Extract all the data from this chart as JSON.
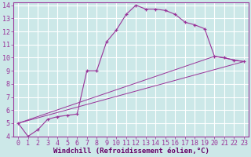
{
  "xlabel": "Windchill (Refroidissement éolien,°C)",
  "line_color": "#993399",
  "background_color": "#cce8e8",
  "grid_color": "#ffffff",
  "xlim": [
    -0.5,
    23.5
  ],
  "ylim": [
    4,
    14.2
  ],
  "xticks": [
    0,
    1,
    2,
    3,
    4,
    5,
    6,
    7,
    8,
    9,
    10,
    11,
    12,
    13,
    14,
    15,
    16,
    17,
    18,
    19,
    20,
    21,
    22,
    23
  ],
  "yticks": [
    4,
    5,
    6,
    7,
    8,
    9,
    10,
    11,
    12,
    13,
    14
  ],
  "curve1_x": [
    0,
    1,
    2,
    3,
    4,
    5,
    6,
    7,
    8,
    9,
    10,
    11,
    12,
    13,
    14,
    15,
    16,
    17,
    18,
    19,
    20,
    21,
    22,
    23
  ],
  "curve1_y": [
    5.0,
    4.0,
    4.5,
    5.3,
    5.5,
    5.6,
    5.7,
    9.0,
    9.0,
    11.2,
    12.1,
    13.3,
    14.0,
    13.7,
    13.7,
    13.6,
    13.3,
    12.7,
    12.5,
    12.2,
    10.1,
    10.0,
    9.8,
    9.7
  ],
  "curve2_x": [
    0,
    23
  ],
  "curve2_y": [
    5.0,
    9.7
  ],
  "curve3_x": [
    0,
    20,
    23
  ],
  "curve3_y": [
    5.0,
    10.1,
    9.7
  ],
  "xlabel_fontsize": 6.5,
  "tick_fontsize": 6,
  "xlabel_color": "#660066",
  "spine_color": "#993399"
}
